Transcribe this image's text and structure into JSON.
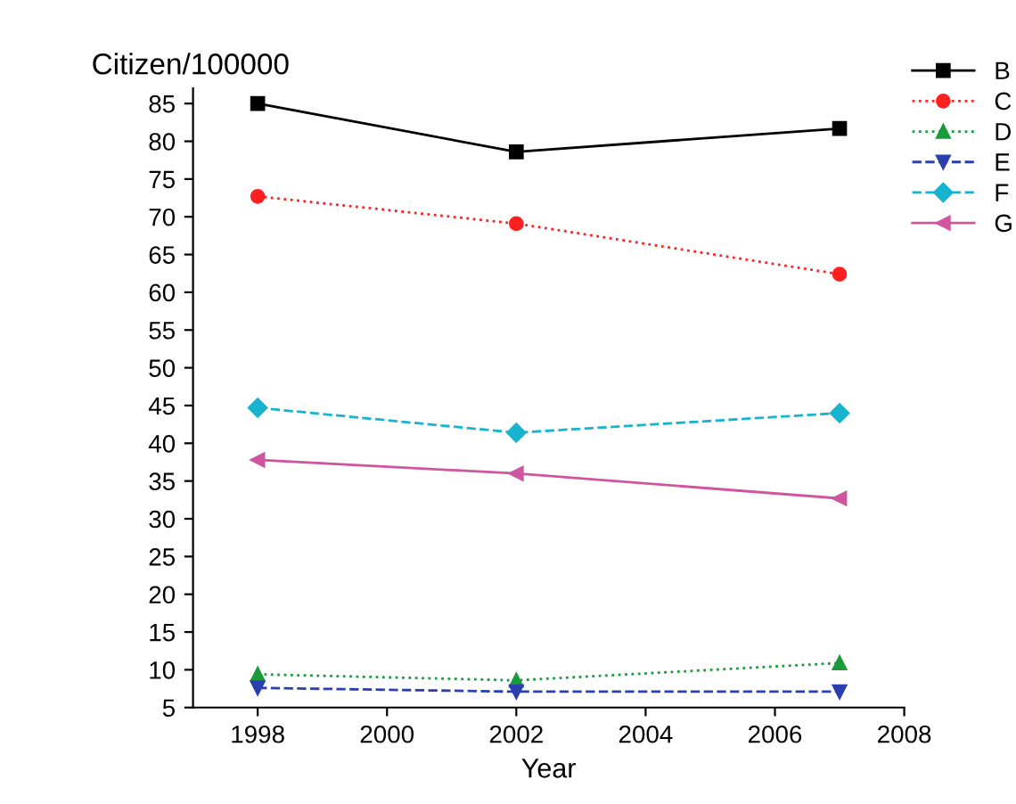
{
  "chart_data": {
    "type": "line",
    "ylabel": "Citizen/100000",
    "xlabel": "Year",
    "x": [
      1998,
      2002,
      2007
    ],
    "series": [
      {
        "name": "B",
        "color": "#000000",
        "values": [
          85,
          78.6,
          81.7
        ],
        "marker": "square",
        "line_style": "solid"
      },
      {
        "name": "C",
        "color": "#ff2020",
        "values": [
          72.7,
          69.1,
          62.4
        ],
        "marker": "circle",
        "line_style": "dotted"
      },
      {
        "name": "D",
        "color": "#1a9a3a",
        "values": [
          9.4,
          8.6,
          10.9
        ],
        "marker": "triangle",
        "line_style": "dotted"
      },
      {
        "name": "E",
        "color": "#2a3fb0",
        "values": [
          7.6,
          7.1,
          7.1
        ],
        "marker": "triangle_down",
        "line_style": "dashed"
      },
      {
        "name": "F",
        "color": "#17b3cf",
        "values": [
          44.7,
          41.4,
          44.0
        ],
        "marker": "diamond",
        "line_style": "dashed"
      },
      {
        "name": "G",
        "color": "#d0559f",
        "values": [
          37.8,
          36.0,
          32.7
        ],
        "marker": "triangle_left",
        "line_style": "solid"
      }
    ],
    "xlim": [
      1997,
      2008
    ],
    "xticks": [
      1998,
      2000,
      2002,
      2004,
      2006,
      2008
    ],
    "ylim": [
      5,
      87
    ],
    "yticks": [
      5,
      10,
      15,
      20,
      25,
      30,
      35,
      40,
      45,
      50,
      55,
      60,
      65,
      70,
      75,
      80,
      85
    ],
    "grid": false,
    "legend": "top right"
  }
}
